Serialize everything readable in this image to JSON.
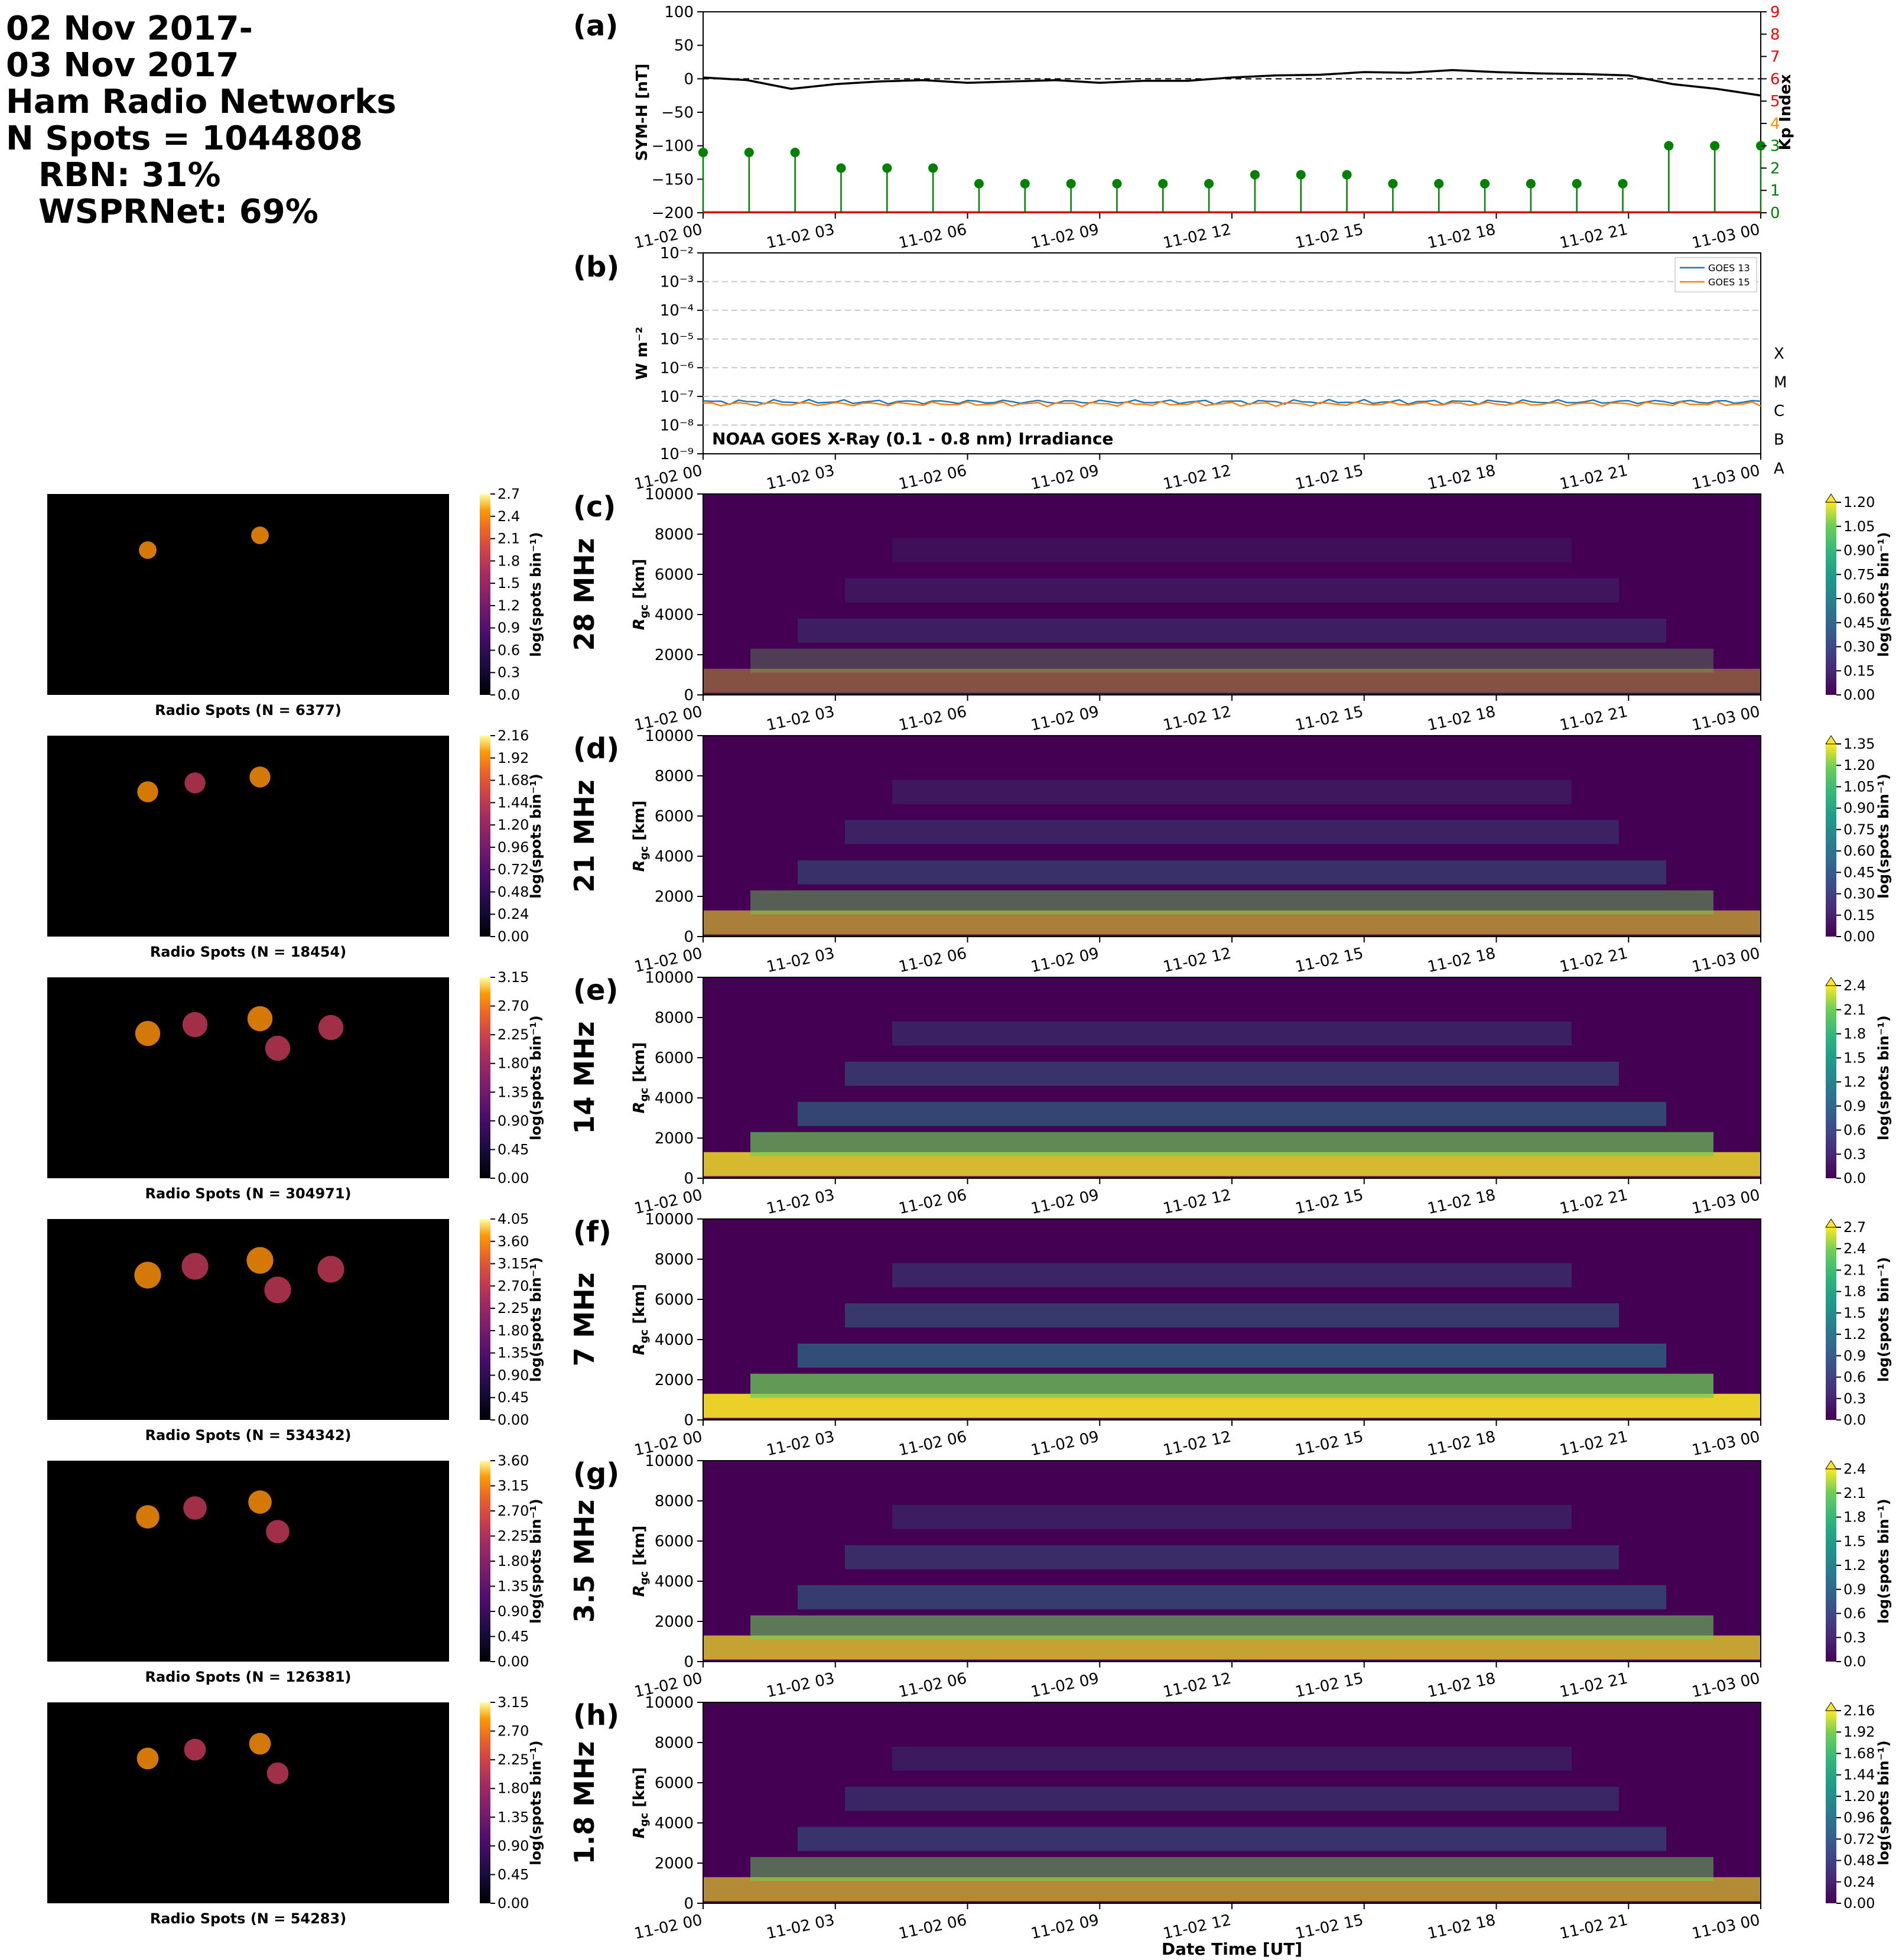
{
  "header": {
    "line1": "02 Nov 2017-",
    "line2": "03 Nov 2017",
    "line3": "Ham Radio Networks",
    "line4": "N Spots = 1044808",
    "line5": "RBN: 31%",
    "line6": "WSPRNet: 69%"
  },
  "time_ticks": [
    "11-02 00",
    "11-02 03",
    "11-02 06",
    "11-02 09",
    "11-02 12",
    "11-02 15",
    "11-02 18",
    "11-02 21",
    "11-03 00"
  ],
  "x_axis_label": "Date Time [UT]",
  "colors": {
    "goes13": "#1f77b4",
    "goes15": "#ff7f0e",
    "symh": "#000000",
    "kp_stem": "#008000",
    "kp_red": "#ff0000",
    "kp_orange": "#ff8c00"
  },
  "chart_data": [
    {
      "type": "line",
      "panel": "(a)",
      "ylabel": "SYM-H [nT]",
      "ylim": [
        -200,
        100
      ],
      "yticks": [
        "100",
        "50",
        "0",
        "−50",
        "−100",
        "−150",
        "−200"
      ],
      "ref_line_y": 0,
      "series": [
        {
          "name": "SYM-H",
          "x_hours": [
            0,
            1,
            2,
            3,
            4,
            5,
            6,
            7,
            8,
            9,
            10,
            11,
            12,
            13,
            14,
            15,
            16,
            17,
            18,
            19,
            20,
            21,
            22,
            23,
            24
          ],
          "values": [
            2,
            -2,
            -15,
            -8,
            -4,
            -2,
            -6,
            -4,
            -2,
            -6,
            -3,
            -3,
            2,
            5,
            6,
            10,
            9,
            13,
            10,
            8,
            7,
            5,
            -8,
            -15,
            -25
          ]
        }
      ],
      "y2label": "Kp Index",
      "y2lim": [
        0,
        9
      ],
      "y2ticks": [
        "0",
        "1",
        "2",
        "3",
        "4",
        "5",
        "6",
        "7",
        "8",
        "9"
      ],
      "kp": {
        "x_hours": [
          0,
          1.5,
          3,
          4.5,
          6,
          7.5,
          9,
          10.5,
          12,
          13.5,
          15,
          16.5,
          18,
          19.5,
          21,
          22.5,
          24,
          25.5,
          27,
          28.5,
          30,
          31.5,
          33,
          34.5
        ],
        "values": [
          2.7,
          2.7,
          2.7,
          2,
          2,
          2,
          1.3,
          1.3,
          1.3,
          1.3,
          1.3,
          1.3,
          1.7,
          1.7,
          1.7,
          1.3,
          1.3,
          1.3,
          1.3,
          1.3,
          1.3,
          3,
          3,
          3
        ]
      }
    },
    {
      "type": "line",
      "panel": "(b)",
      "ylabel": "W m⁻²",
      "yscale": "log",
      "ylim": [
        1e-09,
        0.01
      ],
      "yticks": [
        "10⁻²",
        "10⁻³",
        "10⁻⁴",
        "10⁻⁵",
        "10⁻⁶",
        "10⁻⁷",
        "10⁻⁸",
        "10⁻⁹"
      ],
      "flare_classes": [
        "X",
        "M",
        "C",
        "B",
        "A"
      ],
      "annotation": "NOAA GOES X-Ray (0.1 - 0.8 nm) Irradiance",
      "series": [
        {
          "name": "GOES 13",
          "value_approx": 6.5e-08
        },
        {
          "name": "GOES 15",
          "value_approx": 5.5e-08
        }
      ],
      "legend": "top-right"
    }
  ],
  "bands": [
    {
      "panel": "(c)",
      "freq": "28 MHz",
      "ylabel": "R_gc [km]",
      "n_label": "Radio Spots (N = 6377)",
      "map_cbar_ticks": [
        "2.7",
        "2.4",
        "2.1",
        "1.8",
        "1.5",
        "1.2",
        "0.9",
        "0.6",
        "0.3",
        "0.0"
      ],
      "rti_cbar_ticks": [
        "1.20",
        "1.05",
        "0.90",
        "0.75",
        "0.60",
        "0.45",
        "0.30",
        "0.15",
        "0.00"
      ],
      "intensity": 0.35
    },
    {
      "panel": "(d)",
      "freq": "21 MHz",
      "ylabel": "R_gc [km]",
      "n_label": "Radio Spots (N = 18454)",
      "map_cbar_ticks": [
        "2.16",
        "1.92",
        "1.68",
        "1.44",
        "1.20",
        "0.96",
        "0.72",
        "0.48",
        "0.24",
        "0.00"
      ],
      "rti_cbar_ticks": [
        "1.35",
        "1.20",
        "1.05",
        "0.90",
        "0.75",
        "0.60",
        "0.45",
        "0.30",
        "0.15",
        "0.00"
      ],
      "intensity": 0.55
    },
    {
      "panel": "(e)",
      "freq": "14 MHz",
      "ylabel": "R_gc [km]",
      "n_label": "Radio Spots (N = 304971)",
      "map_cbar_ticks": [
        "3.15",
        "2.70",
        "2.25",
        "1.80",
        "1.35",
        "0.90",
        "0.45",
        "0.00"
      ],
      "rti_cbar_ticks": [
        "2.4",
        "2.1",
        "1.8",
        "1.5",
        "1.2",
        "0.9",
        "0.6",
        "0.3",
        "0.0"
      ],
      "intensity": 0.8
    },
    {
      "panel": "(f)",
      "freq": "7 MHz",
      "ylabel": "R_gc [km]",
      "n_label": "Radio Spots (N = 534342)",
      "map_cbar_ticks": [
        "4.05",
        "3.60",
        "3.15",
        "2.70",
        "2.25",
        "1.80",
        "1.35",
        "0.90",
        "0.45",
        "0.00"
      ],
      "rti_cbar_ticks": [
        "2.7",
        "2.4",
        "2.1",
        "1.8",
        "1.5",
        "1.2",
        "0.9",
        "0.6",
        "0.3",
        "0.0"
      ],
      "intensity": 0.9
    },
    {
      "panel": "(g)",
      "freq": "3.5 MHz",
      "ylabel": "R_gc [km]",
      "n_label": "Radio Spots (N = 126381)",
      "map_cbar_ticks": [
        "3.60",
        "3.15",
        "2.70",
        "2.25",
        "1.80",
        "1.35",
        "0.90",
        "0.45",
        "0.00"
      ],
      "rti_cbar_ticks": [
        "2.4",
        "2.1",
        "1.8",
        "1.5",
        "1.2",
        "0.9",
        "0.6",
        "0.3",
        "0.0"
      ],
      "intensity": 0.7
    },
    {
      "panel": "(h)",
      "freq": "1.8 MHz",
      "ylabel": "R_gc [km]",
      "n_label": "Radio Spots (N = 54283)",
      "map_cbar_ticks": [
        "3.15",
        "2.70",
        "2.25",
        "1.80",
        "1.35",
        "0.90",
        "0.45",
        "0.00"
      ],
      "rti_cbar_ticks": [
        "2.16",
        "1.92",
        "1.68",
        "1.44",
        "1.20",
        "0.96",
        "0.72",
        "0.48",
        "0.24",
        "0.00"
      ],
      "intensity": 0.6
    }
  ],
  "rti_yticks": [
    "10000",
    "8000",
    "6000",
    "4000",
    "2000",
    "0"
  ],
  "cbar_label": "log(spots bin⁻¹)"
}
